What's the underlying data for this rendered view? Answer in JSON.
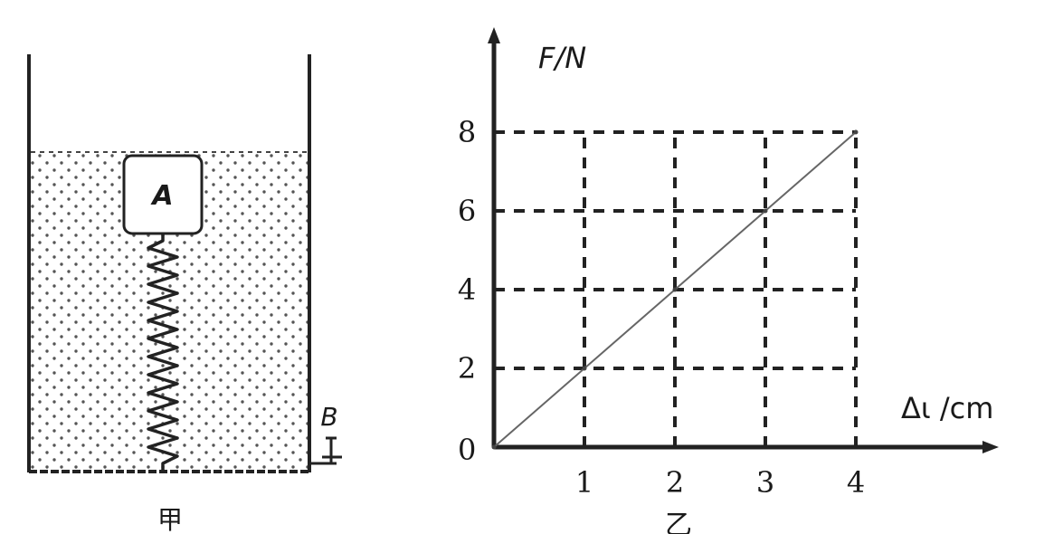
{
  "figure_a": {
    "block_label": "A",
    "valve_label": "B",
    "caption": "甲"
  },
  "figure_b": {
    "caption": "乙"
  },
  "chart_data": {
    "type": "line",
    "xlabel": "Δι /cm",
    "ylabel": "F/N",
    "x_ticks": [
      "1",
      "2",
      "3",
      "4"
    ],
    "y_ticks": [
      "2",
      "4",
      "6",
      "8"
    ],
    "origin_label": "0",
    "xlim": [
      0,
      5.5
    ],
    "ylim": [
      0,
      8
    ],
    "grid": true,
    "series": [
      {
        "x": [
          0,
          1,
          2,
          3,
          4
        ],
        "y": [
          0,
          2,
          4,
          6,
          8
        ]
      }
    ]
  }
}
